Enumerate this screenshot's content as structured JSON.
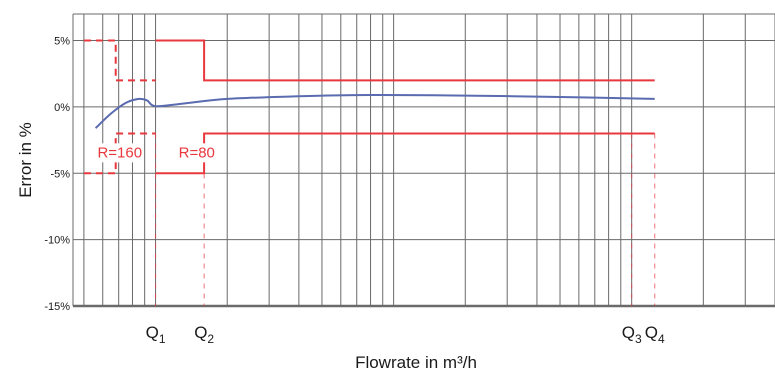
{
  "chart_data": {
    "type": "line",
    "xlabel": "Flowrate in m³/h",
    "ylabel": "Error in %",
    "ylim": [
      -15,
      7
    ],
    "y_ticks": [
      {
        "value": 5,
        "label": "5%"
      },
      {
        "value": 0,
        "label": "0%"
      },
      {
        "value": -5,
        "label": "-5%"
      },
      {
        "value": -10,
        "label": "-10%"
      },
      {
        "value": -15,
        "label": "-15%"
      }
    ],
    "grid": true,
    "x_scale": "log",
    "x_markers": [
      {
        "name": "Q",
        "sub": "1",
        "x": 1.0
      },
      {
        "name": "Q",
        "sub": "2",
        "x": 1.6
      },
      {
        "name": "Q",
        "sub": "3",
        "x": 100
      },
      {
        "name": "Q",
        "sub": "4",
        "x": 125
      }
    ],
    "series": [
      {
        "kind": "error-curve",
        "color": "#5a6bb0",
        "x": [
          0.56,
          0.65,
          0.75,
          0.85,
          0.92,
          1.0,
          1.3,
          2.0,
          4.0,
          8.0,
          20,
          50,
          125
        ],
        "y": [
          -1.6,
          -0.5,
          0.3,
          0.6,
          0.5,
          0.05,
          0.25,
          0.6,
          0.8,
          0.9,
          0.85,
          0.75,
          0.6
        ]
      },
      {
        "kind": "limit-R80",
        "style": "solid",
        "color": "#e8383d",
        "upper": [
          {
            "x": 1.0,
            "y": 5
          },
          {
            "x": 1.6,
            "y": 5
          },
          {
            "x": 1.6,
            "y": 2
          },
          {
            "x": 125,
            "y": 2
          }
        ],
        "lower": [
          {
            "x": 1.0,
            "y": -5
          },
          {
            "x": 1.6,
            "y": -5
          },
          {
            "x": 1.6,
            "y": -2
          },
          {
            "x": 125,
            "y": -2
          }
        ]
      },
      {
        "kind": "limit-R160",
        "style": "dashed",
        "color": "#e8383d",
        "upper": [
          {
            "x": 0.5,
            "y": 5
          },
          {
            "x": 0.68,
            "y": 5
          },
          {
            "x": 0.68,
            "y": 2
          },
          {
            "x": 1.0,
            "y": 2
          }
        ],
        "lower": [
          {
            "x": 0.5,
            "y": -5
          },
          {
            "x": 0.68,
            "y": -5
          },
          {
            "x": 0.68,
            "y": -2
          },
          {
            "x": 1.0,
            "y": -2
          }
        ]
      }
    ],
    "annotations": [
      {
        "text": "R=160",
        "x": 0.57,
        "y": -3.8
      },
      {
        "text": "R=80",
        "x": 1.25,
        "y": -3.8
      }
    ],
    "colors": {
      "limit": "#e8383d",
      "curve": "#5a6bb0",
      "grid": "#6a6a6a"
    }
  }
}
